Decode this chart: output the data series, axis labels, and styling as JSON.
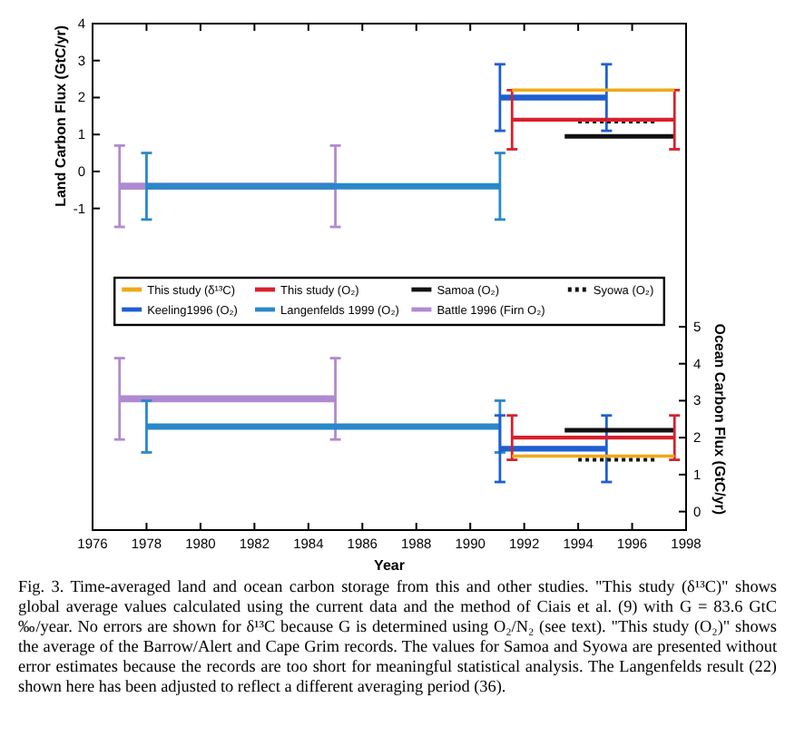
{
  "chart_data": {
    "type": "line",
    "xlabel": "Year",
    "ylabel": "Land Carbon Flux (GtC/yr)",
    "y2label": "Ocean Carbon Flux (GtC/yr)",
    "xlim": [
      1976,
      1998
    ],
    "xticks": [
      1976,
      1978,
      1980,
      1982,
      1984,
      1986,
      1988,
      1990,
      1992,
      1994,
      1996,
      1998
    ],
    "ylim": [
      -9.7,
      4
    ],
    "yticks": [
      -1,
      0,
      1,
      2,
      3,
      4
    ],
    "y2lim": [
      -0.5,
      13.2
    ],
    "y2ticks": [
      0,
      1,
      2,
      3,
      4,
      5
    ],
    "grid": false,
    "legend": "center",
    "marker": "none",
    "series": [
      {
        "name": "This study (δ¹³C)",
        "color": "#f0a818",
        "x": [
          1991.55,
          1997.57
        ],
        "values": [
          2.2,
          2.2
        ],
        "axis": "y"
      },
      {
        "name": "This study (O₂)",
        "color": "#d8202c",
        "x": [
          1991.55,
          1997.57
        ],
        "values": [
          1.4,
          1.4
        ],
        "errors": [
          0.8,
          0.8
        ],
        "axis": "y"
      },
      {
        "name": "Samoa (O₂)",
        "color": "#111111",
        "x": [
          1993.5,
          1997.57
        ],
        "values": [
          0.95,
          0.95
        ],
        "axis": "y"
      },
      {
        "name": "Syowa (O₂)",
        "color": "#111111",
        "x": [
          1994,
          1996.9
        ],
        "values": [
          1.35,
          1.35
        ],
        "axis": "y",
        "line_style": "dotted"
      },
      {
        "name": "Keeling1996 (O₂)",
        "color": "#1f5fd0",
        "x": [
          1991.1,
          1995.05
        ],
        "values": [
          2.0,
          2.0
        ],
        "errors": [
          0.9,
          0.9
        ],
        "axis": "y"
      },
      {
        "name": "Langenfelds 1999 (O₂)",
        "color": "#2a88c8",
        "x": [
          1978,
          1991.1
        ],
        "values": [
          -0.4,
          -0.4
        ],
        "errors": [
          0.9,
          0.9
        ],
        "axis": "y"
      },
      {
        "name": "Battle 1996 (Firn O₂)",
        "color": "#b08ad0",
        "x": [
          1977,
          1985
        ],
        "values": [
          -0.4,
          -0.4
        ],
        "errors": [
          1.1,
          1.1
        ],
        "axis": "y"
      },
      {
        "color": "#f0a818",
        "x": [
          1991.55,
          1997.57
        ],
        "values": [
          1.5,
          1.5
        ],
        "axis": "y2"
      },
      {
        "color": "#d8202c",
        "x": [
          1991.55,
          1997.57
        ],
        "values": [
          2.0,
          2.0
        ],
        "errors": [
          0.6,
          0.6
        ],
        "axis": "y2"
      },
      {
        "color": "#111111",
        "x": [
          1993.5,
          1997.57
        ],
        "values": [
          2.2,
          2.2
        ],
        "axis": "y2"
      },
      {
        "color": "#111111",
        "x": [
          1994,
          1996.9
        ],
        "values": [
          1.4,
          1.4
        ],
        "axis": "y2",
        "line_style": "dotted"
      },
      {
        "color": "#1f5fd0",
        "x": [
          1991.1,
          1995.05
        ],
        "values": [
          1.7,
          1.7
        ],
        "errors": [
          0.9,
          0.9
        ],
        "axis": "y2"
      },
      {
        "color": "#2a88c8",
        "x": [
          1978,
          1991.1
        ],
        "values": [
          2.3,
          2.3
        ],
        "errors": [
          0.7,
          0.7
        ],
        "axis": "y2"
      },
      {
        "color": "#b08ad0",
        "x": [
          1977,
          1985
        ],
        "values": [
          3.05,
          3.05
        ],
        "errors": [
          1.1,
          1.1
        ],
        "axis": "y2"
      }
    ],
    "annotations": [
      "Fig. 3. Time-averaged land and ocean carbon storage from this and other studies. \"This study (δ¹³C)\" shows global average values calculated using the current data and the method of Ciais et al. (9) with G = 83.6 GtC ‰/year. No errors are shown for δ¹³C because G is determined using O₂/N₂ (see text). \"This study (O₂)\" shows the average of the Barrow/Alert and Cape Grim records. The values for Samoa and Syowa are presented without error estimates because the records are too short for meaningful statistical analysis. The Langenfelds result (22) shown here has been adjusted to reflect a different averaging period (36)."
    ]
  }
}
